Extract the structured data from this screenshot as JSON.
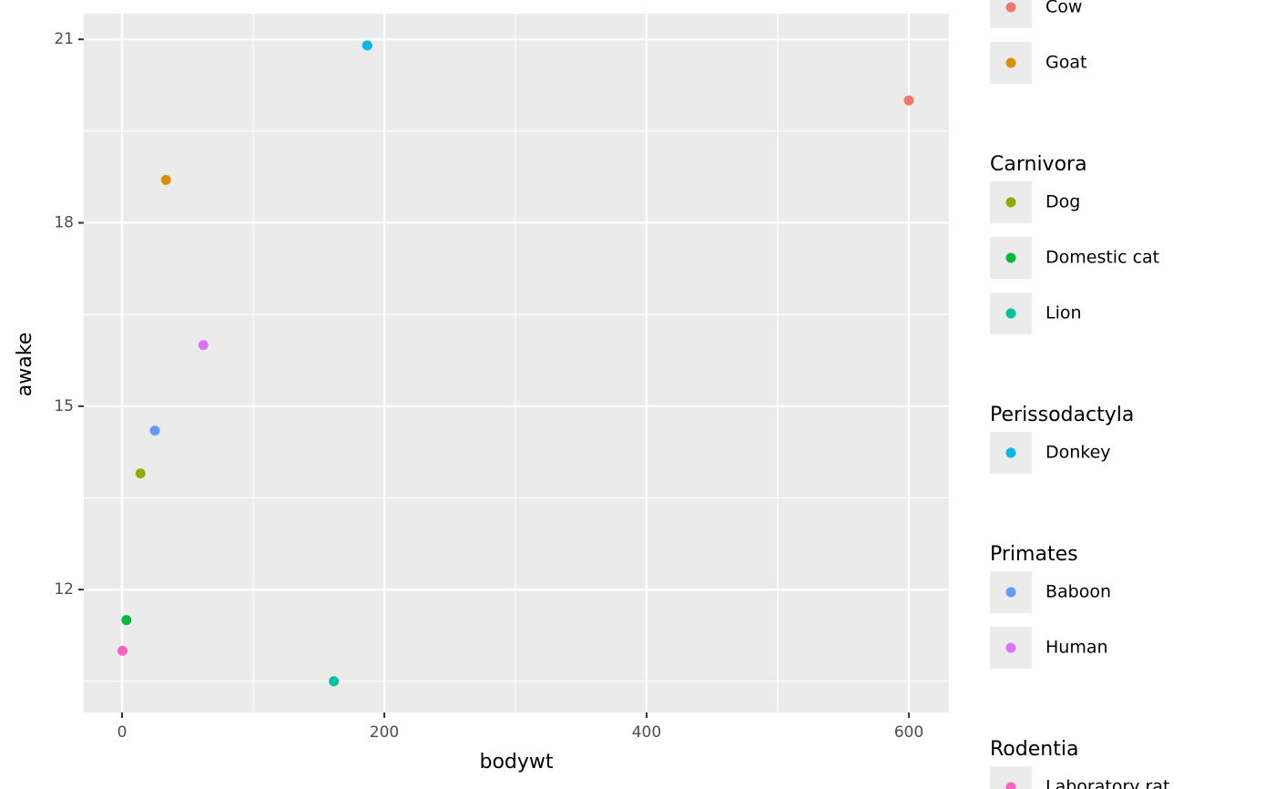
{
  "chart_data": {
    "type": "scatter",
    "x_label": "bodywt",
    "y_label": "awake",
    "xlim": [
      -29.2,
      630.6
    ],
    "ylim": [
      9.99,
      21.42
    ],
    "xticks": [
      0,
      200,
      400,
      600
    ],
    "yticks": [
      12,
      15,
      18,
      21
    ],
    "x_minor_ticks": [
      100,
      300,
      500
    ],
    "y_minor_ticks": [
      10.5,
      13.5,
      16.5,
      19.5
    ],
    "grid": true,
    "groups": [
      {
        "series": [
          {
            "name": "Cow",
            "color": "#F8766D",
            "x": [
              600
            ],
            "values": [
              20.0
            ]
          },
          {
            "name": "Goat",
            "color": "#D39200",
            "x": [
              33.5
            ],
            "values": [
              18.7
            ]
          }
        ]
      },
      {
        "title": "Carnivora",
        "series": [
          {
            "name": "Dog",
            "color": "#93AA00",
            "x": [
              14
            ],
            "values": [
              13.9
            ]
          },
          {
            "name": "Domestic cat",
            "color": "#00BA38",
            "x": [
              3.3
            ],
            "values": [
              11.5
            ]
          },
          {
            "name": "Lion",
            "color": "#00C19F",
            "x": [
              161.5
            ],
            "values": [
              10.5
            ]
          }
        ]
      },
      {
        "title": "Perissodactyla",
        "series": [
          {
            "name": "Donkey",
            "color": "#00B9E3",
            "x": [
              187
            ],
            "values": [
              20.9
            ]
          }
        ]
      },
      {
        "title": "Primates",
        "series": [
          {
            "name": "Baboon",
            "color": "#619CFF",
            "x": [
              25
            ],
            "values": [
              14.6
            ]
          },
          {
            "name": "Human",
            "color": "#DB72FB",
            "x": [
              62
            ],
            "values": [
              16.0
            ]
          }
        ]
      },
      {
        "title": "Rodentia",
        "series": [
          {
            "name": "Laboratory rat",
            "color": "#FF61C3",
            "x": [
              0.3
            ],
            "values": [
              11.0
            ]
          }
        ]
      }
    ]
  }
}
